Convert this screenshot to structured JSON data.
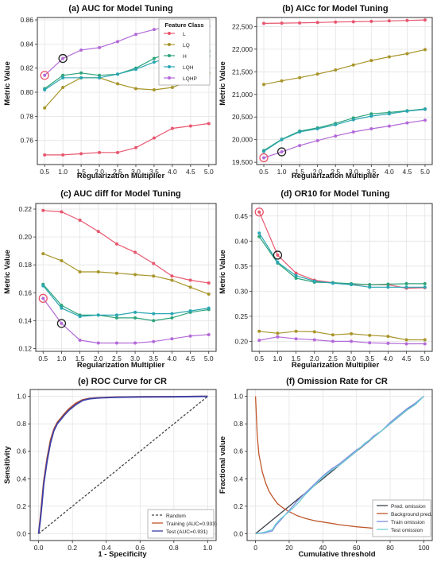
{
  "chart_data": [
    {
      "type": "line",
      "title": "(a) AUC for Model Tuning",
      "xlabel": "Regularization Multiplier",
      "ylabel": "Metric Value",
      "x": [
        0.5,
        1.0,
        1.5,
        2.0,
        2.5,
        3.0,
        3.5,
        4.0,
        4.5,
        5.0
      ],
      "x_ticks": [
        "0.5",
        "1.0",
        "1.5",
        "2.0",
        "2.5",
        "3.0",
        "3.5",
        "4.0",
        "4.5",
        "5.0"
      ],
      "ylim": [
        0.74,
        0.862
      ],
      "y_ticks": [
        "0.76",
        "0.78",
        "0.80",
        "0.82",
        "0.84",
        "0.86"
      ],
      "legend_title": "Feature Class",
      "legend_position": "top-right",
      "series": [
        {
          "name": "L",
          "color": "#e8566e",
          "values": [
            0.748,
            0.748,
            0.749,
            0.75,
            0.75,
            0.754,
            0.762,
            0.77,
            0.772,
            0.774
          ]
        },
        {
          "name": "LQ",
          "color": "#a8952a",
          "values": [
            0.787,
            0.804,
            0.812,
            0.812,
            0.807,
            0.803,
            0.802,
            0.804,
            0.81,
            0.816
          ]
        },
        {
          "name": "H",
          "color": "#2da37a",
          "values": [
            0.803,
            0.814,
            0.816,
            0.814,
            0.815,
            0.82,
            0.828,
            0.834,
            0.834,
            0.834
          ]
        },
        {
          "name": "LQH",
          "color": "#2aa6b2",
          "values": [
            0.802,
            0.812,
            0.812,
            0.812,
            0.815,
            0.819,
            0.825,
            0.829,
            0.83,
            0.83
          ]
        },
        {
          "name": "LQHP",
          "color": "#b36ad8",
          "values": [
            0.814,
            0.828,
            0.835,
            0.837,
            0.842,
            0.848,
            0.852,
            0.855,
            0.855,
            0.855
          ]
        }
      ],
      "highlights": [
        {
          "x": 0.5,
          "y": 0.814,
          "color": "#e8566e"
        },
        {
          "x": 1.0,
          "y": 0.828,
          "color": "#222222"
        }
      ]
    },
    {
      "type": "line",
      "title": "(b) AICc for Model Tuning",
      "xlabel": "Regularization Multiplier",
      "ylabel": "Metric Value",
      "x": [
        0.5,
        1.0,
        1.5,
        2.0,
        2.5,
        3.0,
        3.5,
        4.0,
        4.5,
        5.0
      ],
      "x_ticks": [
        "0.5",
        "1.0",
        "1.5",
        "2.0",
        "2.5",
        "3.0",
        "3.5",
        "4.0",
        "4.5",
        "5.0"
      ],
      "ylim": [
        19450,
        22700
      ],
      "y_ticks": [
        "19,500",
        "20,000",
        "20,500",
        "21,000",
        "21,500",
        "22,000",
        "22,500"
      ],
      "series": [
        {
          "name": "L",
          "color": "#e8566e",
          "values": [
            22570,
            22575,
            22580,
            22590,
            22600,
            22605,
            22615,
            22625,
            22635,
            22645
          ]
        },
        {
          "name": "LQ",
          "color": "#a8952a",
          "values": [
            21220,
            21300,
            21370,
            21450,
            21540,
            21650,
            21750,
            21830,
            21900,
            21990
          ]
        },
        {
          "name": "H",
          "color": "#2da37a",
          "values": [
            19760,
            20010,
            20190,
            20260,
            20360,
            20480,
            20570,
            20600,
            20640,
            20680
          ]
        },
        {
          "name": "LQH",
          "color": "#2aa6b2",
          "values": [
            19740,
            20000,
            20170,
            20240,
            20330,
            20440,
            20520,
            20570,
            20630,
            20670
          ]
        },
        {
          "name": "LQHP",
          "color": "#b36ad8",
          "values": [
            19600,
            19730,
            19870,
            19980,
            20080,
            20170,
            20240,
            20300,
            20370,
            20430
          ]
        }
      ],
      "highlights": [
        {
          "x": 0.5,
          "y": 19600,
          "color": "#e8566e"
        },
        {
          "x": 1.0,
          "y": 19730,
          "color": "#222222"
        }
      ]
    },
    {
      "type": "line",
      "title": "(c) AUC diff for Model Tuning",
      "xlabel": "Regularization Multiplier",
      "ylabel": "Metric Value",
      "x": [
        0.5,
        1.0,
        1.5,
        2.0,
        2.5,
        3.0,
        3.5,
        4.0,
        4.5,
        5.0
      ],
      "x_ticks": [
        "0.5",
        "1.0",
        "1.5",
        "2.0",
        "2.5",
        "3.0",
        "3.5",
        "4.0",
        "4.5",
        "5.0"
      ],
      "ylim": [
        0.118,
        0.224
      ],
      "y_ticks": [
        "0.12",
        "0.14",
        "0.16",
        "0.18",
        "0.20",
        "0.22"
      ],
      "series": [
        {
          "name": "L",
          "color": "#e8566e",
          "values": [
            0.219,
            0.218,
            0.212,
            0.204,
            0.195,
            0.189,
            0.181,
            0.172,
            0.169,
            0.167
          ]
        },
        {
          "name": "LQ",
          "color": "#a8952a",
          "values": [
            0.188,
            0.183,
            0.175,
            0.175,
            0.174,
            0.173,
            0.172,
            0.169,
            0.164,
            0.159
          ]
        },
        {
          "name": "H",
          "color": "#2da37a",
          "values": [
            0.166,
            0.151,
            0.144,
            0.144,
            0.142,
            0.142,
            0.14,
            0.142,
            0.146,
            0.148
          ]
        },
        {
          "name": "LQH",
          "color": "#2aa6b2",
          "values": [
            0.165,
            0.149,
            0.143,
            0.144,
            0.144,
            0.146,
            0.145,
            0.145,
            0.147,
            0.149
          ]
        },
        {
          "name": "LQHP",
          "color": "#b36ad8",
          "values": [
            0.156,
            0.138,
            0.126,
            0.124,
            0.124,
            0.124,
            0.125,
            0.127,
            0.129,
            0.13
          ]
        }
      ],
      "highlights": [
        {
          "x": 0.5,
          "y": 0.156,
          "color": "#e8566e"
        },
        {
          "x": 1.0,
          "y": 0.138,
          "color": "#222222"
        }
      ]
    },
    {
      "type": "line",
      "title": "(d) OR10 for Model Tuning",
      "xlabel": "Regularization Multiplier",
      "ylabel": "Metric Value",
      "x": [
        0.5,
        1.0,
        1.5,
        2.0,
        2.5,
        3.0,
        3.5,
        4.0,
        4.5,
        5.0
      ],
      "x_ticks": [
        "0.5",
        "1.0",
        "1.5",
        "2.0",
        "2.5",
        "3.0",
        "3.5",
        "4.0",
        "4.5",
        "5.0"
      ],
      "ylim": [
        0.18,
        0.475
      ],
      "y_ticks": [
        "0.20",
        "0.25",
        "0.30",
        "0.35",
        "0.40",
        "0.45"
      ],
      "series": [
        {
          "name": "L",
          "color": "#e8566e",
          "values": [
            0.458,
            0.372,
            0.336,
            0.322,
            0.317,
            0.314,
            0.313,
            0.313,
            0.306,
            0.307
          ]
        },
        {
          "name": "LQ",
          "color": "#a8952a",
          "values": [
            0.22,
            0.216,
            0.22,
            0.219,
            0.213,
            0.215,
            0.212,
            0.21,
            0.203,
            0.203
          ]
        },
        {
          "name": "H",
          "color": "#2da37a",
          "values": [
            0.409,
            0.356,
            0.326,
            0.318,
            0.317,
            0.315,
            0.313,
            0.314,
            0.315,
            0.315
          ]
        },
        {
          "name": "LQH",
          "color": "#2aa6b2",
          "values": [
            0.416,
            0.358,
            0.331,
            0.32,
            0.316,
            0.313,
            0.308,
            0.308,
            0.308,
            0.308
          ]
        },
        {
          "name": "LQHP",
          "color": "#b36ad8",
          "values": [
            0.202,
            0.209,
            0.205,
            0.203,
            0.2,
            0.2,
            0.197,
            0.196,
            0.195,
            0.195
          ]
        }
      ],
      "highlights": [
        {
          "x": 0.5,
          "y": 0.458,
          "color": "#e8566e"
        },
        {
          "x": 1.0,
          "y": 0.372,
          "color": "#222222"
        }
      ]
    },
    {
      "type": "line",
      "title": "(e) ROC Curve for CR",
      "xlabel": "1 - Specificity",
      "ylabel": "Sensitivity",
      "xlim": [
        -0.05,
        1.05
      ],
      "ylim": [
        -0.05,
        1.05
      ],
      "x_ticks": [
        "0.0",
        "0.2",
        "0.4",
        "0.6",
        "0.8",
        "1.0"
      ],
      "y_ticks": [
        "0.0",
        "0.2",
        "0.4",
        "0.6",
        "0.8",
        "1.0"
      ],
      "legend_position": "bottom-right",
      "series": [
        {
          "name": "Random",
          "color": "#444444",
          "dashed": true,
          "x": [
            0,
            1
          ],
          "y": [
            0,
            1
          ]
        },
        {
          "name": "Training (AUC=0.933)",
          "color": "#c0562a",
          "x": [
            0,
            0.01,
            0.02,
            0.03,
            0.05,
            0.07,
            0.09,
            0.11,
            0.13,
            0.15,
            0.18,
            0.22,
            0.26,
            0.3,
            0.35,
            0.45,
            0.6,
            0.8,
            1.0
          ],
          "y": [
            0,
            0.12,
            0.25,
            0.38,
            0.55,
            0.68,
            0.76,
            0.81,
            0.84,
            0.87,
            0.91,
            0.95,
            0.975,
            0.985,
            0.99,
            0.995,
            0.997,
            0.998,
            1.0
          ]
        },
        {
          "name": "Test (AUC=0.931)",
          "color": "#3b3fa8",
          "x": [
            0,
            0.01,
            0.02,
            0.03,
            0.05,
            0.07,
            0.09,
            0.11,
            0.13,
            0.15,
            0.18,
            0.22,
            0.26,
            0.3,
            0.35,
            0.45,
            0.6,
            0.8,
            1.0
          ],
          "y": [
            0,
            0.1,
            0.22,
            0.36,
            0.53,
            0.66,
            0.75,
            0.8,
            0.83,
            0.86,
            0.9,
            0.94,
            0.97,
            0.982,
            0.988,
            0.993,
            0.996,
            0.997,
            1.0
          ]
        }
      ]
    },
    {
      "type": "line",
      "title": "(f) Omission Rate for CR",
      "xlabel": "Cumulative threshold",
      "ylabel": "Fractional value",
      "xlim": [
        -5,
        105
      ],
      "ylim": [
        -0.05,
        1.05
      ],
      "x_ticks": [
        "0",
        "20",
        "40",
        "60",
        "80",
        "100"
      ],
      "y_ticks": [
        "0.0",
        "0.2",
        "0.4",
        "0.6",
        "0.8",
        "1.0"
      ],
      "legend_position": "bottom-right",
      "series": [
        {
          "name": "Pred. omission",
          "color": "#3a3f4a",
          "x": [
            0,
            100
          ],
          "y": [
            0,
            1
          ]
        },
        {
          "name": "Background pred.",
          "color": "#c0562a",
          "x": [
            0,
            1,
            2,
            4,
            6,
            8,
            10,
            13,
            16,
            20,
            25,
            30,
            35,
            40,
            50,
            60,
            70,
            80,
            90,
            100
          ],
          "y": [
            1.0,
            0.72,
            0.58,
            0.45,
            0.37,
            0.31,
            0.27,
            0.22,
            0.19,
            0.16,
            0.13,
            0.11,
            0.095,
            0.085,
            0.065,
            0.05,
            0.04,
            0.03,
            0.02,
            0.01
          ]
        },
        {
          "name": "Train omission",
          "color": "#7b8fe0",
          "x": [
            0,
            5,
            10,
            12,
            15,
            20,
            25,
            30,
            35,
            40,
            45,
            50,
            55,
            60,
            65,
            70,
            75,
            80,
            85,
            90,
            95,
            100
          ],
          "y": [
            0,
            0.005,
            0.02,
            0.06,
            0.1,
            0.17,
            0.24,
            0.3,
            0.36,
            0.42,
            0.47,
            0.51,
            0.56,
            0.61,
            0.65,
            0.71,
            0.75,
            0.81,
            0.86,
            0.91,
            0.95,
            1.0
          ]
        },
        {
          "name": "Test omission",
          "color": "#6fcfd8",
          "x": [
            0,
            5,
            10,
            12,
            15,
            20,
            25,
            30,
            35,
            40,
            45,
            50,
            55,
            60,
            65,
            70,
            75,
            80,
            85,
            90,
            95,
            100
          ],
          "y": [
            0,
            0.01,
            0.03,
            0.07,
            0.11,
            0.16,
            0.22,
            0.29,
            0.35,
            0.41,
            0.46,
            0.5,
            0.55,
            0.6,
            0.66,
            0.7,
            0.75,
            0.8,
            0.85,
            0.9,
            0.94,
            1.0
          ]
        }
      ]
    }
  ]
}
